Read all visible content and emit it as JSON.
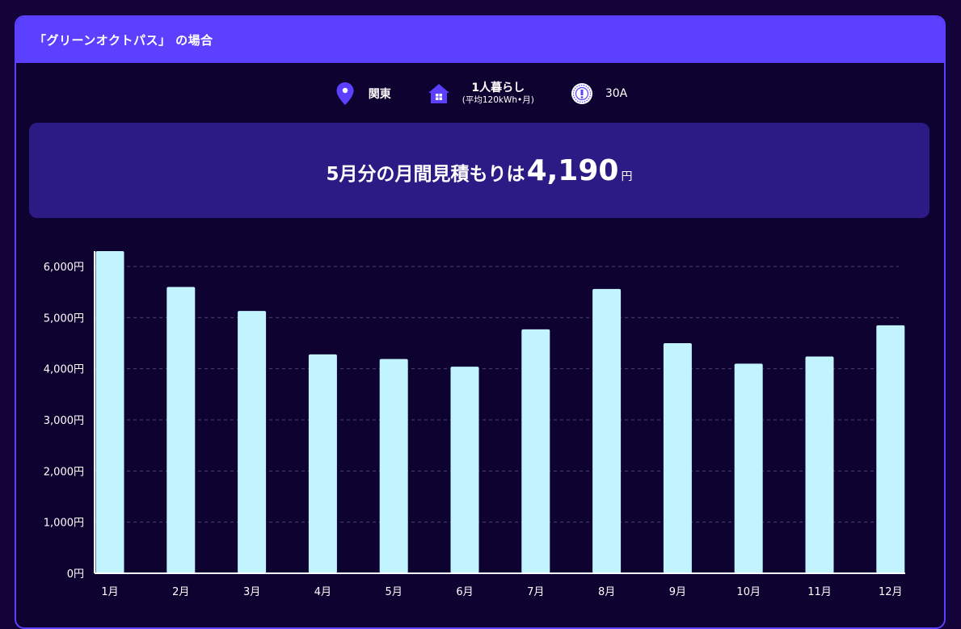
{
  "header": {
    "title": "「グリーンオクトパス」 の場合"
  },
  "conditions": {
    "region": {
      "icon": "location-pin-icon",
      "label": "関東"
    },
    "household": {
      "icon": "house-icon",
      "label": "1人暮らし",
      "sub": "(平均120kWh•月)"
    },
    "ampere": {
      "icon": "breaker-icon",
      "label": "30A"
    }
  },
  "estimate": {
    "label": "5月分の月間見積もりは",
    "amount": "4,190",
    "unit": "円"
  },
  "colors": {
    "accent": "#5b40ff",
    "bar": "#c1f4ff",
    "estimate_bg": "#2d1b85",
    "background": "#0e0230"
  },
  "chart_data": {
    "type": "bar",
    "categories": [
      "1月",
      "2月",
      "3月",
      "4月",
      "5月",
      "6月",
      "7月",
      "8月",
      "9月",
      "10月",
      "11月",
      "12月"
    ],
    "values": [
      6300,
      5600,
      5130,
      4280,
      4190,
      4040,
      4770,
      5560,
      4500,
      4100,
      4240,
      4850
    ],
    "y_ticks": [
      "0円",
      "1,000円",
      "2,000円",
      "3,000円",
      "4,000円",
      "5,000円",
      "6,000円"
    ],
    "ylim": [
      0,
      6300
    ],
    "grid": true,
    "legend": "none"
  }
}
